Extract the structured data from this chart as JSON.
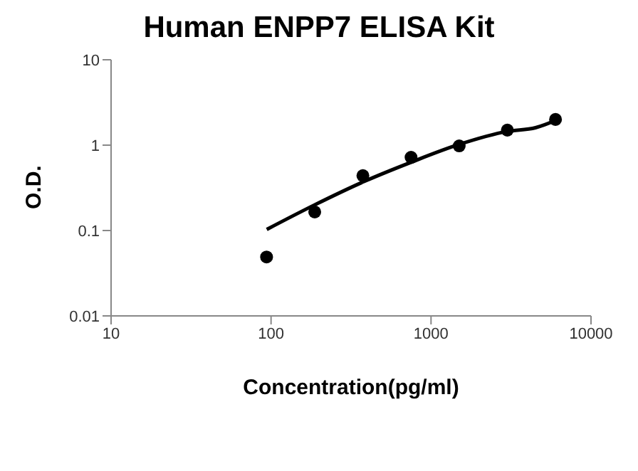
{
  "chart_data": {
    "type": "scatter",
    "title": "Human ENPP7 ELISA Kit",
    "xlabel": "Concentration(pg/ml)",
    "ylabel": "O.D.",
    "log": "xy",
    "xlim": [
      10,
      10000
    ],
    "xticks": [
      10,
      100,
      1000,
      10000
    ],
    "ylim": [
      0.01,
      10
    ],
    "yticks": [
      0.01,
      0.1,
      1,
      10
    ],
    "grid": false,
    "marker": "circle",
    "series": [
      {
        "color": "#000000",
        "x": [
          93.75,
          187.5,
          375,
          750,
          1500,
          3000,
          6000
        ],
        "values": [
          0.049,
          0.165,
          0.44,
          0.72,
          0.98,
          1.5,
          2.0
        ]
      },
      {
        "type": "line",
        "color": "#000000",
        "marker": "none",
        "line_style": "solid",
        "x": [
          94,
          187.5,
          375,
          750,
          1500,
          3000,
          4500,
          6000
        ],
        "values": [
          0.103,
          0.2,
          0.37,
          0.63,
          1.02,
          1.45,
          1.6,
          1.95
        ]
      }
    ]
  }
}
